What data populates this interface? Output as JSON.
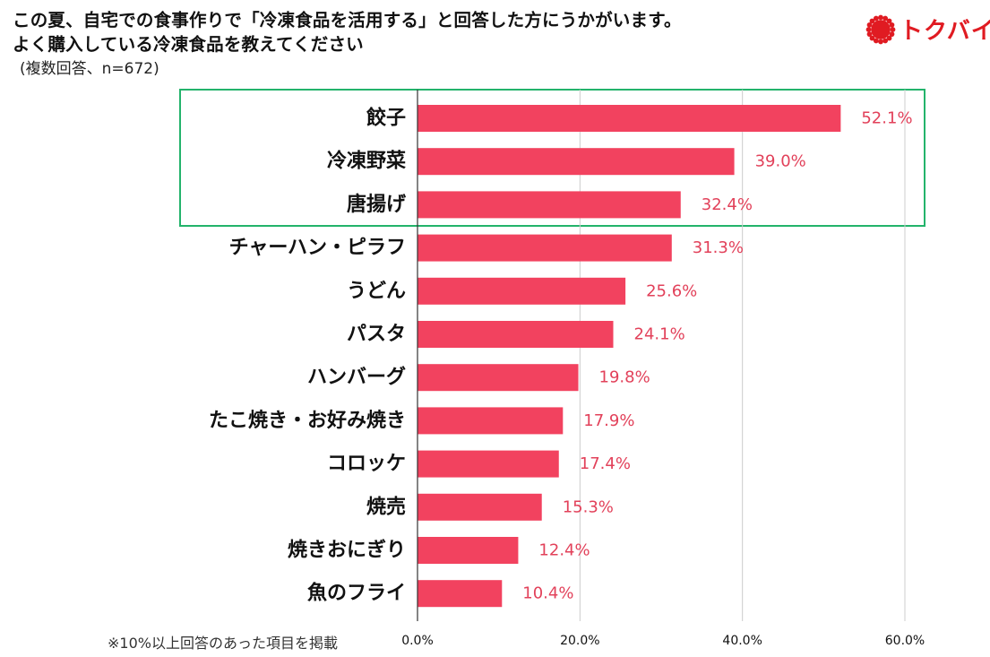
{
  "header": {
    "title_line1": "この夏、自宅での食事作りで「冷凍食品を活用する」と回答した方にうかがいます。",
    "title_line2": "よく購入している冷凍食品を教えてください",
    "subtitle": "(複数回答、n=672)"
  },
  "logo": {
    "text": "トクバイ",
    "icon": "red-sun-icon",
    "color": "#e01b22"
  },
  "highlight": {
    "color": "#23b36b",
    "categories": [
      "餃子",
      "冷凍野菜",
      "唐揚げ"
    ]
  },
  "footnote": "※10%以上回答のあった項目を掲載",
  "chart_data": {
    "type": "bar",
    "orientation": "horizontal",
    "categories": [
      "餃子",
      "冷凍野菜",
      "唐揚げ",
      "チャーハン・ピラフ",
      "うどん",
      "パスタ",
      "ハンバーグ",
      "たこ焼き・お好み焼き",
      "コロッケ",
      "焼売",
      "焼きおにぎり",
      "魚のフライ"
    ],
    "values": [
      52.1,
      39.0,
      32.4,
      31.3,
      25.6,
      24.1,
      19.8,
      17.9,
      17.4,
      15.3,
      12.4,
      10.4
    ],
    "value_labels": [
      "52.1%",
      "39.0%",
      "32.4%",
      "31.3%",
      "25.6%",
      "24.1%",
      "19.8%",
      "17.9%",
      "17.4%",
      "15.3%",
      "12.4%",
      "10.4%"
    ],
    "xlim": [
      0,
      60
    ],
    "xticks": [
      0,
      20,
      40,
      60
    ],
    "xtick_labels": [
      "0.0%",
      "20.0%",
      "40.0%",
      "60.0%"
    ],
    "bar_color": "#f2425f",
    "label_color": "#e2415a",
    "grid": true
  }
}
